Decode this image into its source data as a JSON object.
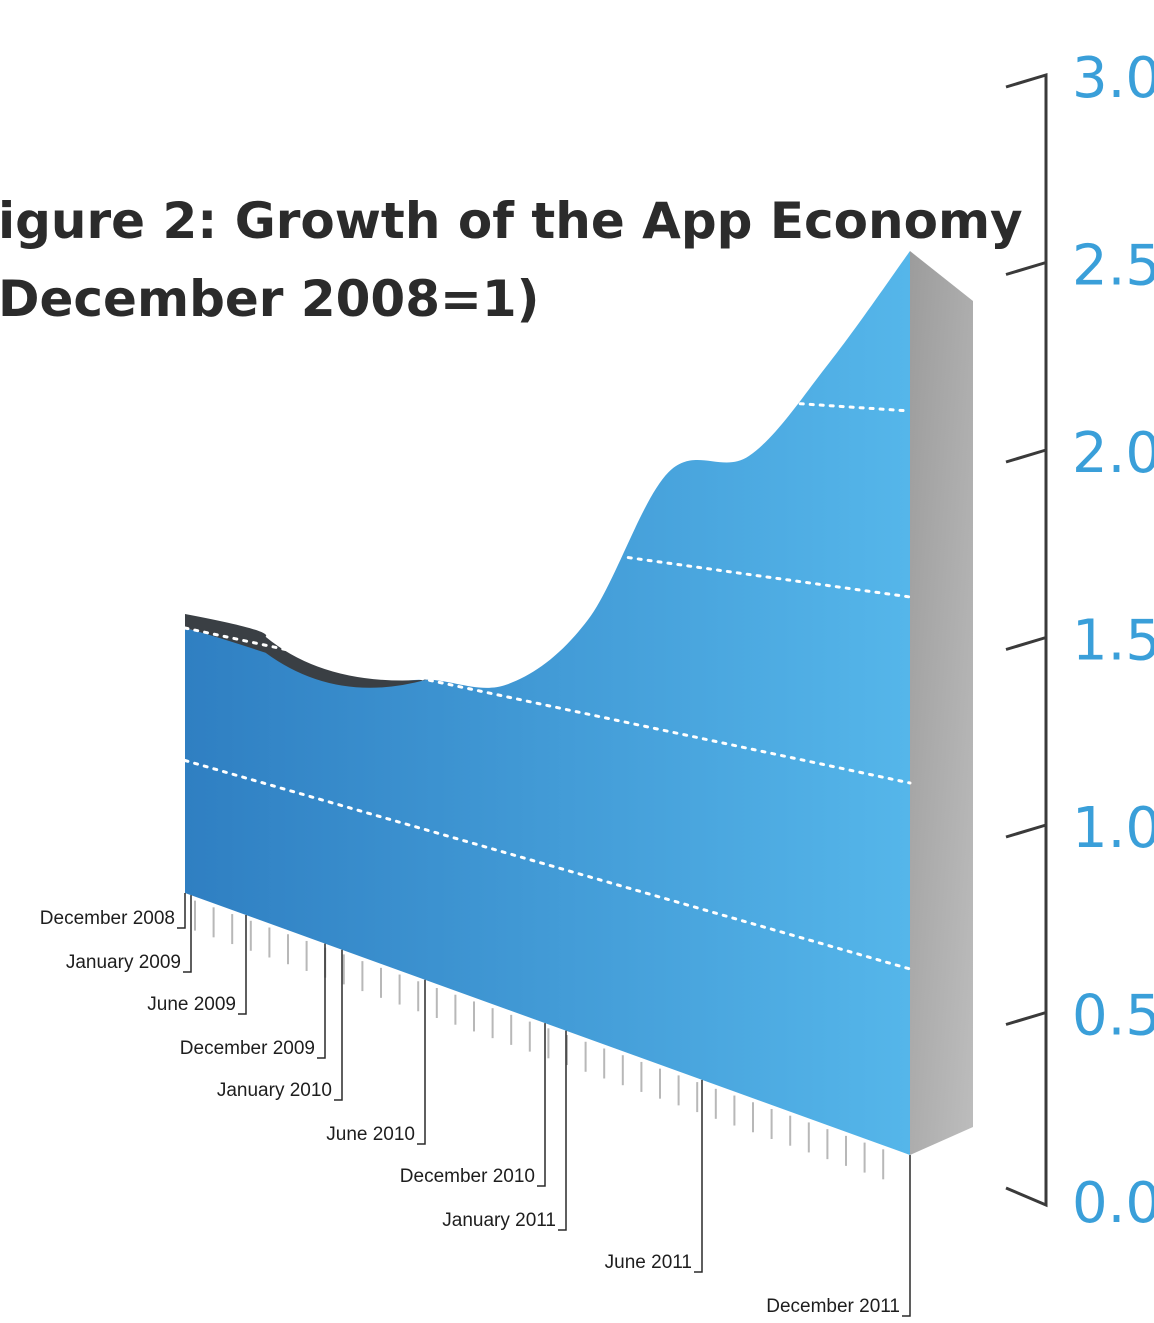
{
  "chart_data": {
    "type": "area",
    "title_lines": [
      "igure 2: Growth of the App Economy",
      "December 2008=1)"
    ],
    "xlabel": "",
    "ylabel": "",
    "ylim": [
      0,
      3.0
    ],
    "yticks": [
      "0.0",
      "0.5",
      "1.0",
      "1.5",
      "2.0",
      "2.5",
      "3.0"
    ],
    "grid": "dotted",
    "x": [
      "December 2008",
      "January 2009",
      "June 2009",
      "December 2009",
      "January 2010",
      "June 2010",
      "December 2010",
      "January 2011",
      "June 2011",
      "December 2011"
    ],
    "series": [
      {
        "values": [
          1.0,
          0.98,
          0.93,
          1.0,
          1.04,
          1.29,
          1.77,
          1.84,
          2.12,
          2.43
        ]
      }
    ],
    "colors": {
      "area": "#3d98d6",
      "area_top": "#3a3f44",
      "side": "#a8a8a8",
      "grid": "#ffffff",
      "ytick": "#3a9fd9"
    }
  }
}
